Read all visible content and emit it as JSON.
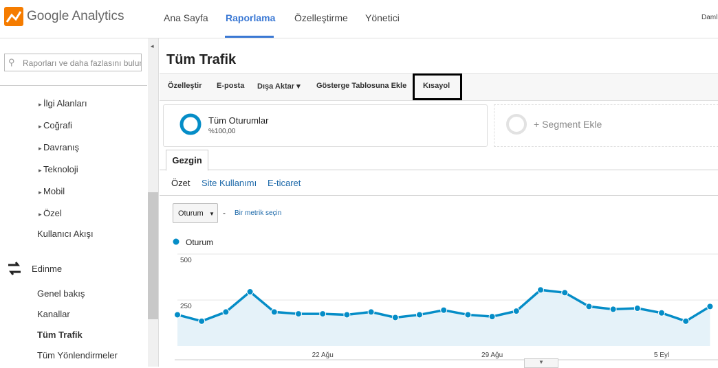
{
  "header": {
    "logo": "Google Analytics",
    "nav": [
      "Ana Sayfa",
      "Raporlama",
      "Özelleştirme",
      "Yönetici"
    ],
    "user": "Daml"
  },
  "sidebar": {
    "search_placeholder": "Raporları ve daha fazlasını bulun",
    "items": [
      "İlgi Alanları",
      "Coğrafi",
      "Davranış",
      "Teknoloji",
      "Mobil",
      "Özel"
    ],
    "link": "Kullanıcı Akışı",
    "section": "Edinme",
    "subitems": [
      "Genel bakış",
      "Kanallar",
      "Tüm Trafik",
      "Tüm Yönlendirmeler"
    ]
  },
  "main": {
    "title": "Tüm Trafik",
    "toolbar": [
      "Özelleştir",
      "E-posta",
      "Dışa Aktar",
      "Gösterge Tablosuna Ekle",
      "Kısayol"
    ],
    "segment": {
      "name": "Tüm Oturumlar",
      "share": "%100,00"
    },
    "add_segment": "+ Segment Ekle",
    "tab": "Gezgin",
    "subtabs": [
      "Özet",
      "Site Kullanımı",
      "E-ticaret"
    ],
    "metric": "Oturum",
    "dash": "-",
    "metric_link": "Bir metrik seçin"
  },
  "chart_data": {
    "type": "line",
    "categories": [
      null,
      null,
      null,
      null,
      null,
      null,
      "22 Ağu",
      null,
      null,
      null,
      null,
      null,
      null,
      "29 Ağu",
      null,
      null,
      null,
      null,
      null,
      null,
      "5 Eyl",
      null,
      null
    ],
    "series": [
      {
        "name": "Oturum",
        "color": "#058dc7",
        "values": [
          170,
          135,
          185,
          295,
          185,
          175,
          175,
          170,
          185,
          155,
          170,
          195,
          170,
          160,
          190,
          305,
          290,
          215,
          200,
          205,
          180,
          135,
          215
        ]
      }
    ],
    "ylim": [
      0,
      500
    ],
    "yticks": [
      250,
      500
    ],
    "grid": true
  }
}
